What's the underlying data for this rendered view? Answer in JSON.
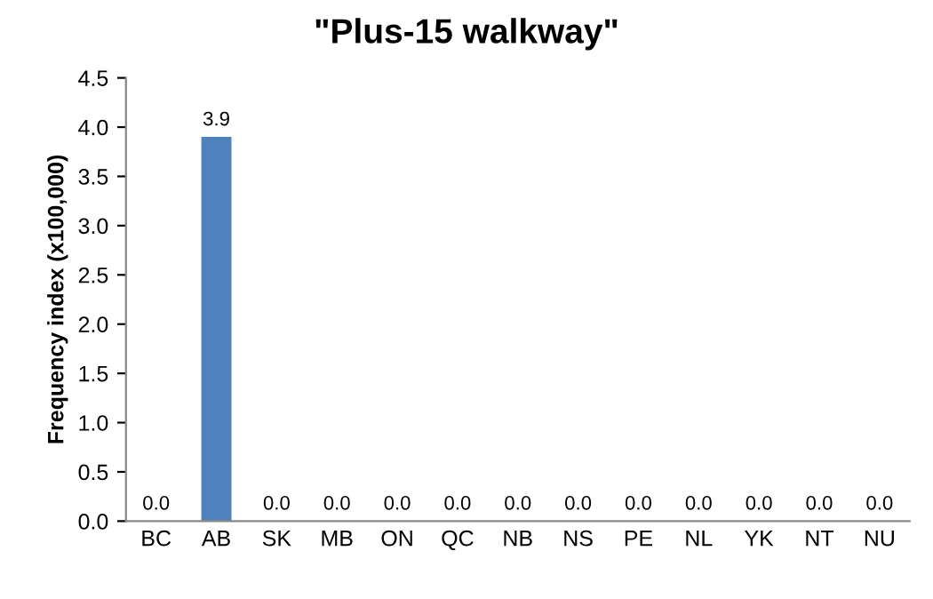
{
  "chart_data": {
    "type": "bar",
    "title": "\"Plus-15 walkway\"",
    "ylabel": "Frequency index (x100,000)",
    "categories": [
      "BC",
      "AB",
      "SK",
      "MB",
      "ON",
      "QC",
      "NB",
      "NS",
      "PE",
      "NL",
      "YK",
      "NT",
      "NU"
    ],
    "values": [
      0,
      3.9,
      0,
      0,
      0,
      0,
      0,
      0,
      0,
      0,
      0,
      0,
      0
    ],
    "value_labels": [
      "0.0",
      "3.9",
      "0.0",
      "0.0",
      "0.0",
      "0.0",
      "0.0",
      "0.0",
      "0.0",
      "0.0",
      "0.0",
      "0.0",
      "0.0"
    ],
    "color": "#4f81bd",
    "ylim": [
      0,
      4.5
    ],
    "yticks": [
      {
        "value": 0,
        "label": "0.0"
      },
      {
        "value": 0.5,
        "label": "0.5"
      },
      {
        "value": 1,
        "label": "1.0"
      },
      {
        "value": 1.5,
        "label": "1.5"
      },
      {
        "value": 2,
        "label": "2.0"
      },
      {
        "value": 2.5,
        "label": "2.5"
      },
      {
        "value": 3,
        "label": "3.0"
      },
      {
        "value": 3.5,
        "label": "3.5"
      },
      {
        "value": 4,
        "label": "4.0"
      },
      {
        "value": 4.5,
        "label": "4.5"
      }
    ],
    "grid": false,
    "legend": false
  }
}
